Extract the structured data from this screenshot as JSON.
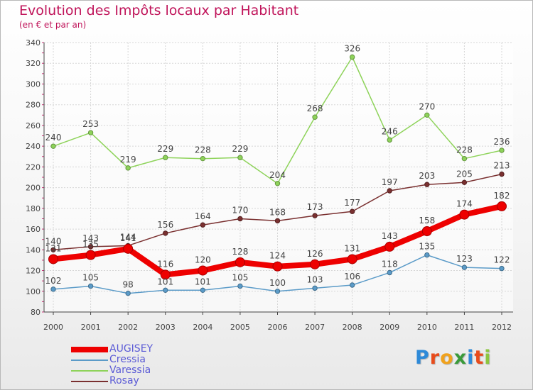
{
  "header": {
    "title": "Evolution des Impôts locaux par Habitant",
    "subtitle": "(en € et par an)"
  },
  "logo": {
    "letters": [
      "P",
      "r",
      "o",
      "x",
      "i",
      "t",
      "i"
    ],
    "colors": [
      "#2e8ad8",
      "#e84c1c",
      "#f0a21e",
      "#3a9a3a",
      "#2e8ad8",
      "#e84c1c",
      "#8cc63f"
    ]
  },
  "chart_data": {
    "type": "line",
    "title": "Evolution des Impôts locaux par Habitant",
    "subtitle": "(en € et par an)",
    "xlabel": "",
    "ylabel": "",
    "categories": [
      "2000",
      "2001",
      "2002",
      "2003",
      "2004",
      "2005",
      "2006",
      "2007",
      "2008",
      "2009",
      "2010",
      "2011",
      "2012"
    ],
    "ylim": [
      80,
      340
    ],
    "yticks": [
      80,
      100,
      120,
      140,
      160,
      180,
      200,
      220,
      240,
      260,
      280,
      300,
      320,
      340
    ],
    "grid": true,
    "legend_position": "bottom-left",
    "series": [
      {
        "name": "AUGISEY",
        "values": [
          131,
          135,
          141,
          116,
          120,
          128,
          124,
          126,
          131,
          143,
          158,
          174,
          182
        ],
        "labels": [
          "131",
          "135",
          "141",
          "116",
          "120",
          "128",
          "124",
          "126",
          "131",
          "143",
          "158",
          "174",
          "182"
        ],
        "color": "#ee0000",
        "emphasis": true
      },
      {
        "name": "Cressia",
        "values": [
          102,
          105,
          98,
          101,
          101,
          105,
          100,
          103,
          106,
          118,
          135,
          123,
          122
        ],
        "labels": [
          "102",
          "105",
          "98",
          "101",
          "101",
          "105",
          "100",
          "103",
          "106",
          "118",
          "135",
          "123",
          "122"
        ],
        "color": "#5b9bc8",
        "emphasis": false
      },
      {
        "name": "Varessia",
        "values": [
          240,
          253,
          219,
          229,
          228,
          229,
          204,
          268,
          326,
          246,
          270,
          228,
          236
        ],
        "labels": [
          "240",
          "253",
          "219",
          "229",
          "228",
          "229",
          "204",
          "268",
          "326",
          "246",
          "270",
          "228",
          "236"
        ],
        "color": "#8ed35a",
        "emphasis": false
      },
      {
        "name": "Rosay",
        "values": [
          140,
          143,
          144,
          156,
          164,
          170,
          168,
          173,
          177,
          197,
          203,
          205,
          213
        ],
        "labels": [
          "140",
          "143",
          "144",
          "156",
          "164",
          "170",
          "168",
          "173",
          "177",
          "197",
          "203",
          "205",
          "213"
        ],
        "color": "#7a3030",
        "emphasis": false
      }
    ]
  }
}
